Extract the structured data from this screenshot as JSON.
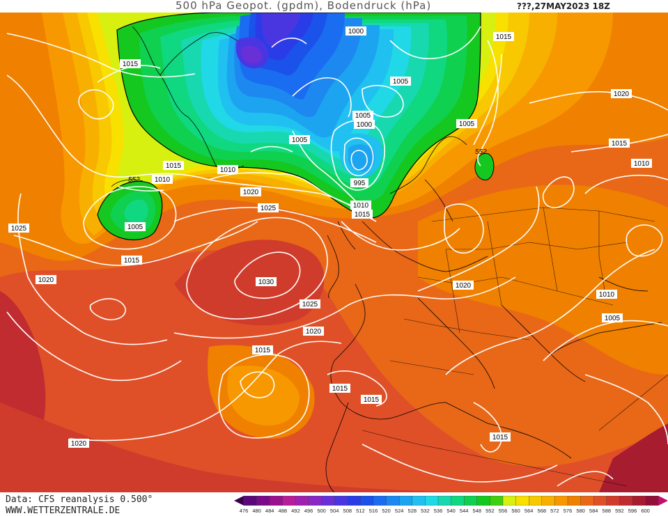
{
  "header": {
    "title": "500 hPa Geopot. (gpdm), Bodendruck (hPa)",
    "date": "???,27MAY2023 18Z"
  },
  "footer": {
    "source": "Data: CFS reanalysis 0.500°",
    "website": "WWW.WETTERZENTRALE.DE"
  },
  "legend": {
    "ticks": [
      "476",
      "480",
      "484",
      "488",
      "492",
      "496",
      "500",
      "504",
      "508",
      "512",
      "516",
      "520",
      "524",
      "528",
      "532",
      "536",
      "540",
      "544",
      "548",
      "552",
      "556",
      "560",
      "564",
      "568",
      "572",
      "576",
      "580",
      "584",
      "588",
      "592",
      "596",
      "600"
    ],
    "colors": [
      "#5a0a78",
      "#7a0a8a",
      "#9a108f",
      "#b81c9b",
      "#a020b0",
      "#8a28c6",
      "#6a30d8",
      "#4a36e0",
      "#2a3ce8",
      "#1a52ea",
      "#1a6cf0",
      "#1c88f0",
      "#1ca4f0",
      "#20c0f0",
      "#20d8e6",
      "#18d8b0",
      "#10d880",
      "#10d050",
      "#14c820",
      "#40d010",
      "#d8f010",
      "#f8e000",
      "#f8c800",
      "#f8b000",
      "#f89800",
      "#f08000",
      "#e86818",
      "#e05028",
      "#d03c2c",
      "#c02c30",
      "#a81c30",
      "#901038"
    ]
  },
  "map": {
    "features": [
      "geopotential-shading",
      "isobars",
      "coastlines",
      "borders"
    ],
    "isobar_labels": [
      "1015",
      "1000",
      "1015",
      "1005",
      "1020",
      "1005",
      "1000",
      "1005",
      "1015",
      "1010",
      "1010",
      "1010",
      "1005",
      "995",
      "1020",
      "1025",
      "1010",
      "1015",
      "1025",
      "1005",
      "1015",
      "1030",
      "1020",
      "1025",
      "1020",
      "1010",
      "1005",
      "1020",
      "1015",
      "1015",
      "1015",
      "1020",
      "1015",
      "1015",
      "1020"
    ],
    "height_labels": [
      "552",
      "552"
    ]
  }
}
